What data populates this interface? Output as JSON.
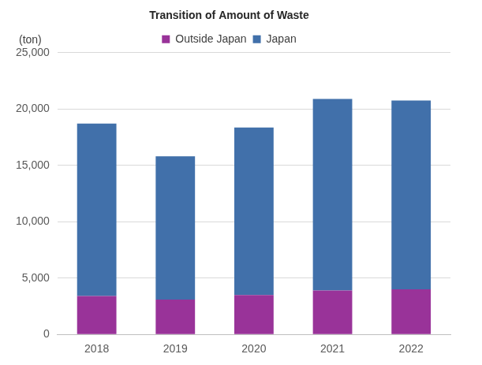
{
  "chart_data": {
    "type": "bar",
    "title": "Transition of Amount of Waste",
    "ylabel": "(ton)",
    "categories": [
      "2018",
      "2019",
      "2020",
      "2021",
      "2022"
    ],
    "series": [
      {
        "name": "Outside Japan",
        "color": "#993399",
        "values": [
          3400,
          3100,
          3500,
          3900,
          4000
        ]
      },
      {
        "name": "Japan",
        "color": "#4170aa",
        "values": [
          15300,
          12700,
          14850,
          17000,
          16750
        ]
      }
    ],
    "stacked": true,
    "ylim": [
      0,
      25000
    ],
    "yticks": [
      0,
      {
        "value": 5000,
        "label": "5,000"
      },
      {
        "value": 10000,
        "label": "10,000"
      },
      {
        "value": 15000,
        "label": "15,000"
      },
      {
        "value": 20000,
        "label": "20,000"
      },
      {
        "value": 25000,
        "label": "25,000"
      }
    ],
    "grid": true,
    "legend": "top"
  }
}
